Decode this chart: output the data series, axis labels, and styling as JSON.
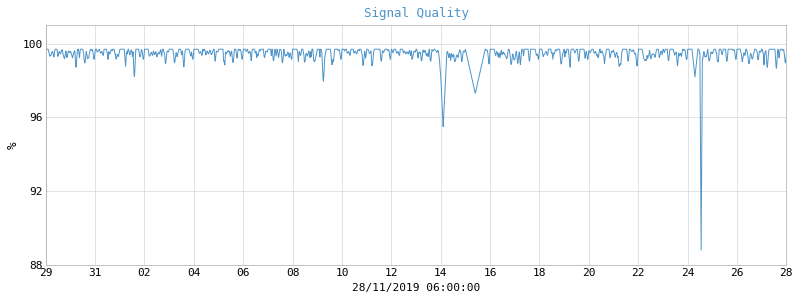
{
  "title": "Signal Quality",
  "title_color": "#4d94c8",
  "ylabel": "%",
  "xlabel": "28/11/2019 06:00:00",
  "ylim": [
    88,
    101
  ],
  "yticks": [
    88,
    92,
    96,
    100
  ],
  "xtick_labels": [
    "29",
    "31",
    "02",
    "04",
    "06",
    "08",
    "10",
    "12",
    "14",
    "16",
    "18",
    "20",
    "22",
    "24",
    "26",
    "28"
  ],
  "line_color": "#4d94c8",
  "background_color": "#ffffff",
  "grid_color": "#d0d8e0",
  "font_family": "monospace",
  "title_fontsize": 9,
  "tick_fontsize": 8,
  "xlabel_fontsize": 8,
  "ylabel_fontsize": 9,
  "linewidth": 0.7
}
